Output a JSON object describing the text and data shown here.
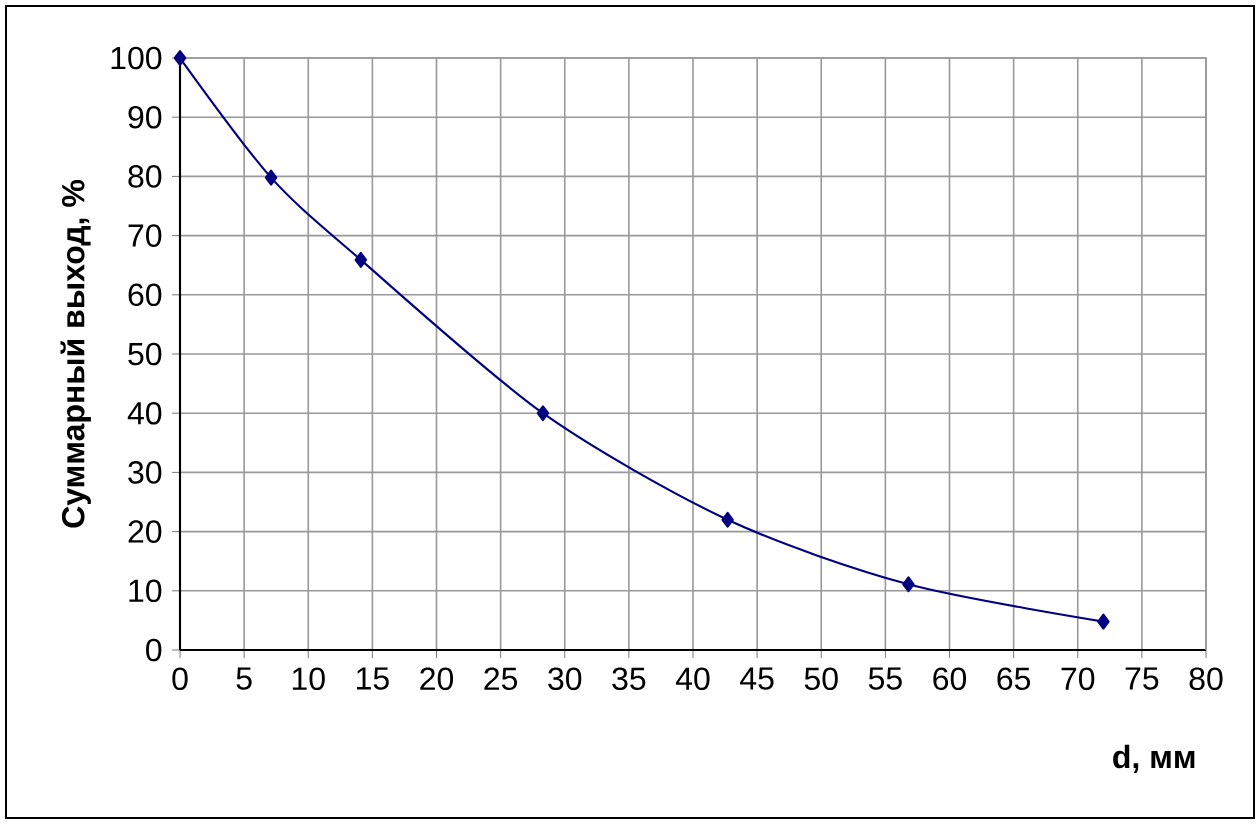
{
  "chart_data": {
    "type": "line",
    "xlabel": "d, мм",
    "ylabel": "Суммарный выход, %",
    "x": [
      0,
      7.1,
      14.1,
      28.3,
      42.7,
      56.8,
      72
    ],
    "series": [
      {
        "color": "#000080",
        "values": [
          100,
          79.8,
          65.9,
          40,
          22,
          11.1,
          4.8
        ]
      }
    ],
    "xlim": [
      0,
      80
    ],
    "xticks": [
      0,
      5,
      10,
      15,
      20,
      25,
      30,
      35,
      40,
      45,
      50,
      55,
      60,
      65,
      70,
      75,
      80
    ],
    "ylim": [
      0,
      100
    ],
    "yticks": [
      0,
      10,
      20,
      30,
      40,
      50,
      60,
      70,
      80,
      90,
      100
    ],
    "grid": true,
    "marker": "diamond",
    "line_style": "solid"
  }
}
